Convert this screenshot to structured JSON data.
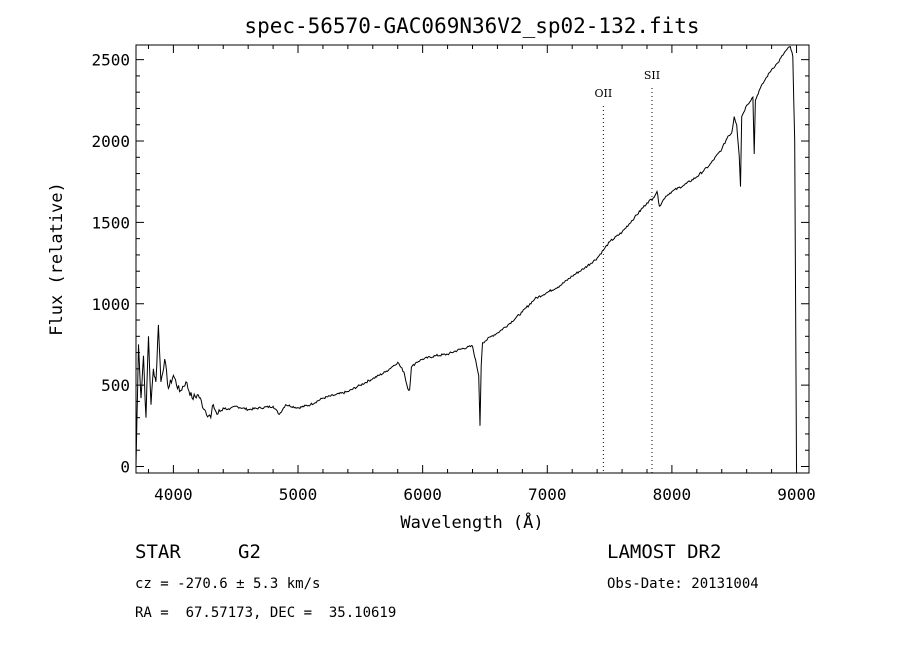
{
  "chart_data": {
    "type": "line",
    "title": "spec-56570-GAC069N36V2_sp02-132.fits",
    "xlabel": "Wavelength (Å)",
    "ylabel": "Flux (relative)",
    "xlim": [
      3700,
      9100
    ],
    "ylim": [
      -40,
      2590
    ],
    "xticks": [
      4000,
      5000,
      6000,
      7000,
      8000,
      9000
    ],
    "yticks": [
      0,
      500,
      1000,
      1500,
      2000,
      2500
    ],
    "grid": false,
    "lines": [
      {
        "label": "OII",
        "x": 7450
      },
      {
        "label": "SII",
        "x": 7840
      }
    ],
    "series": [
      {
        "x": [
          3700,
          3720,
          3740,
          3760,
          3780,
          3800,
          3820,
          3840,
          3860,
          3880,
          3900,
          3930,
          3960,
          4000,
          4050,
          4100,
          4150,
          4200,
          4250,
          4300,
          4320,
          4350,
          4400,
          4450,
          4500,
          4600,
          4700,
          4800,
          4850,
          4900,
          5000,
          5100,
          5200,
          5300,
          5400,
          5500,
          5600,
          5700,
          5750,
          5800,
          5850,
          5880,
          5895,
          5910,
          5950,
          6000,
          6100,
          6200,
          6300,
          6400,
          6450,
          6460,
          6470,
          6480,
          6500,
          6550,
          6600,
          6700,
          6800,
          6900,
          7000,
          7100,
          7200,
          7300,
          7400,
          7450,
          7500,
          7600,
          7700,
          7800,
          7850,
          7880,
          7900,
          7950,
          8000,
          8100,
          8200,
          8300,
          8400,
          8450,
          8480,
          8500,
          8520,
          8540,
          8550,
          8560,
          8600,
          8650,
          8660,
          8670,
          8700,
          8750,
          8800,
          8850,
          8900,
          8920,
          8950,
          8970,
          8985,
          9000
        ],
        "y": [
          0,
          750,
          420,
          680,
          300,
          800,
          380,
          600,
          520,
          870,
          520,
          660,
          480,
          560,
          460,
          520,
          420,
          440,
          350,
          300,
          380,
          320,
          360,
          350,
          370,
          350,
          360,
          370,
          320,
          380,
          360,
          380,
          420,
          440,
          460,
          500,
          540,
          580,
          610,
          640,
          580,
          480,
          470,
          610,
          640,
          660,
          680,
          690,
          720,
          740,
          560,
          250,
          620,
          760,
          770,
          800,
          820,
          880,
          950,
          1030,
          1070,
          1110,
          1170,
          1220,
          1280,
          1330,
          1380,
          1440,
          1530,
          1620,
          1650,
          1690,
          1600,
          1660,
          1690,
          1730,
          1780,
          1850,
          1950,
          2030,
          2050,
          2150,
          2100,
          1910,
          1720,
          2150,
          2220,
          2270,
          1920,
          2250,
          2310,
          2380,
          2440,
          2480,
          2540,
          2560,
          2580,
          2520,
          2000,
          0
        ]
      }
    ]
  },
  "info": {
    "class_label": "STAR",
    "subclass_label": "G2",
    "survey": "LAMOST DR2",
    "velocity": "cz = -270.6 ± 5.3 km/s",
    "obs_date": "Obs-Date: 20131004",
    "coords": "RA =  67.57173, DEC =  35.10619"
  }
}
